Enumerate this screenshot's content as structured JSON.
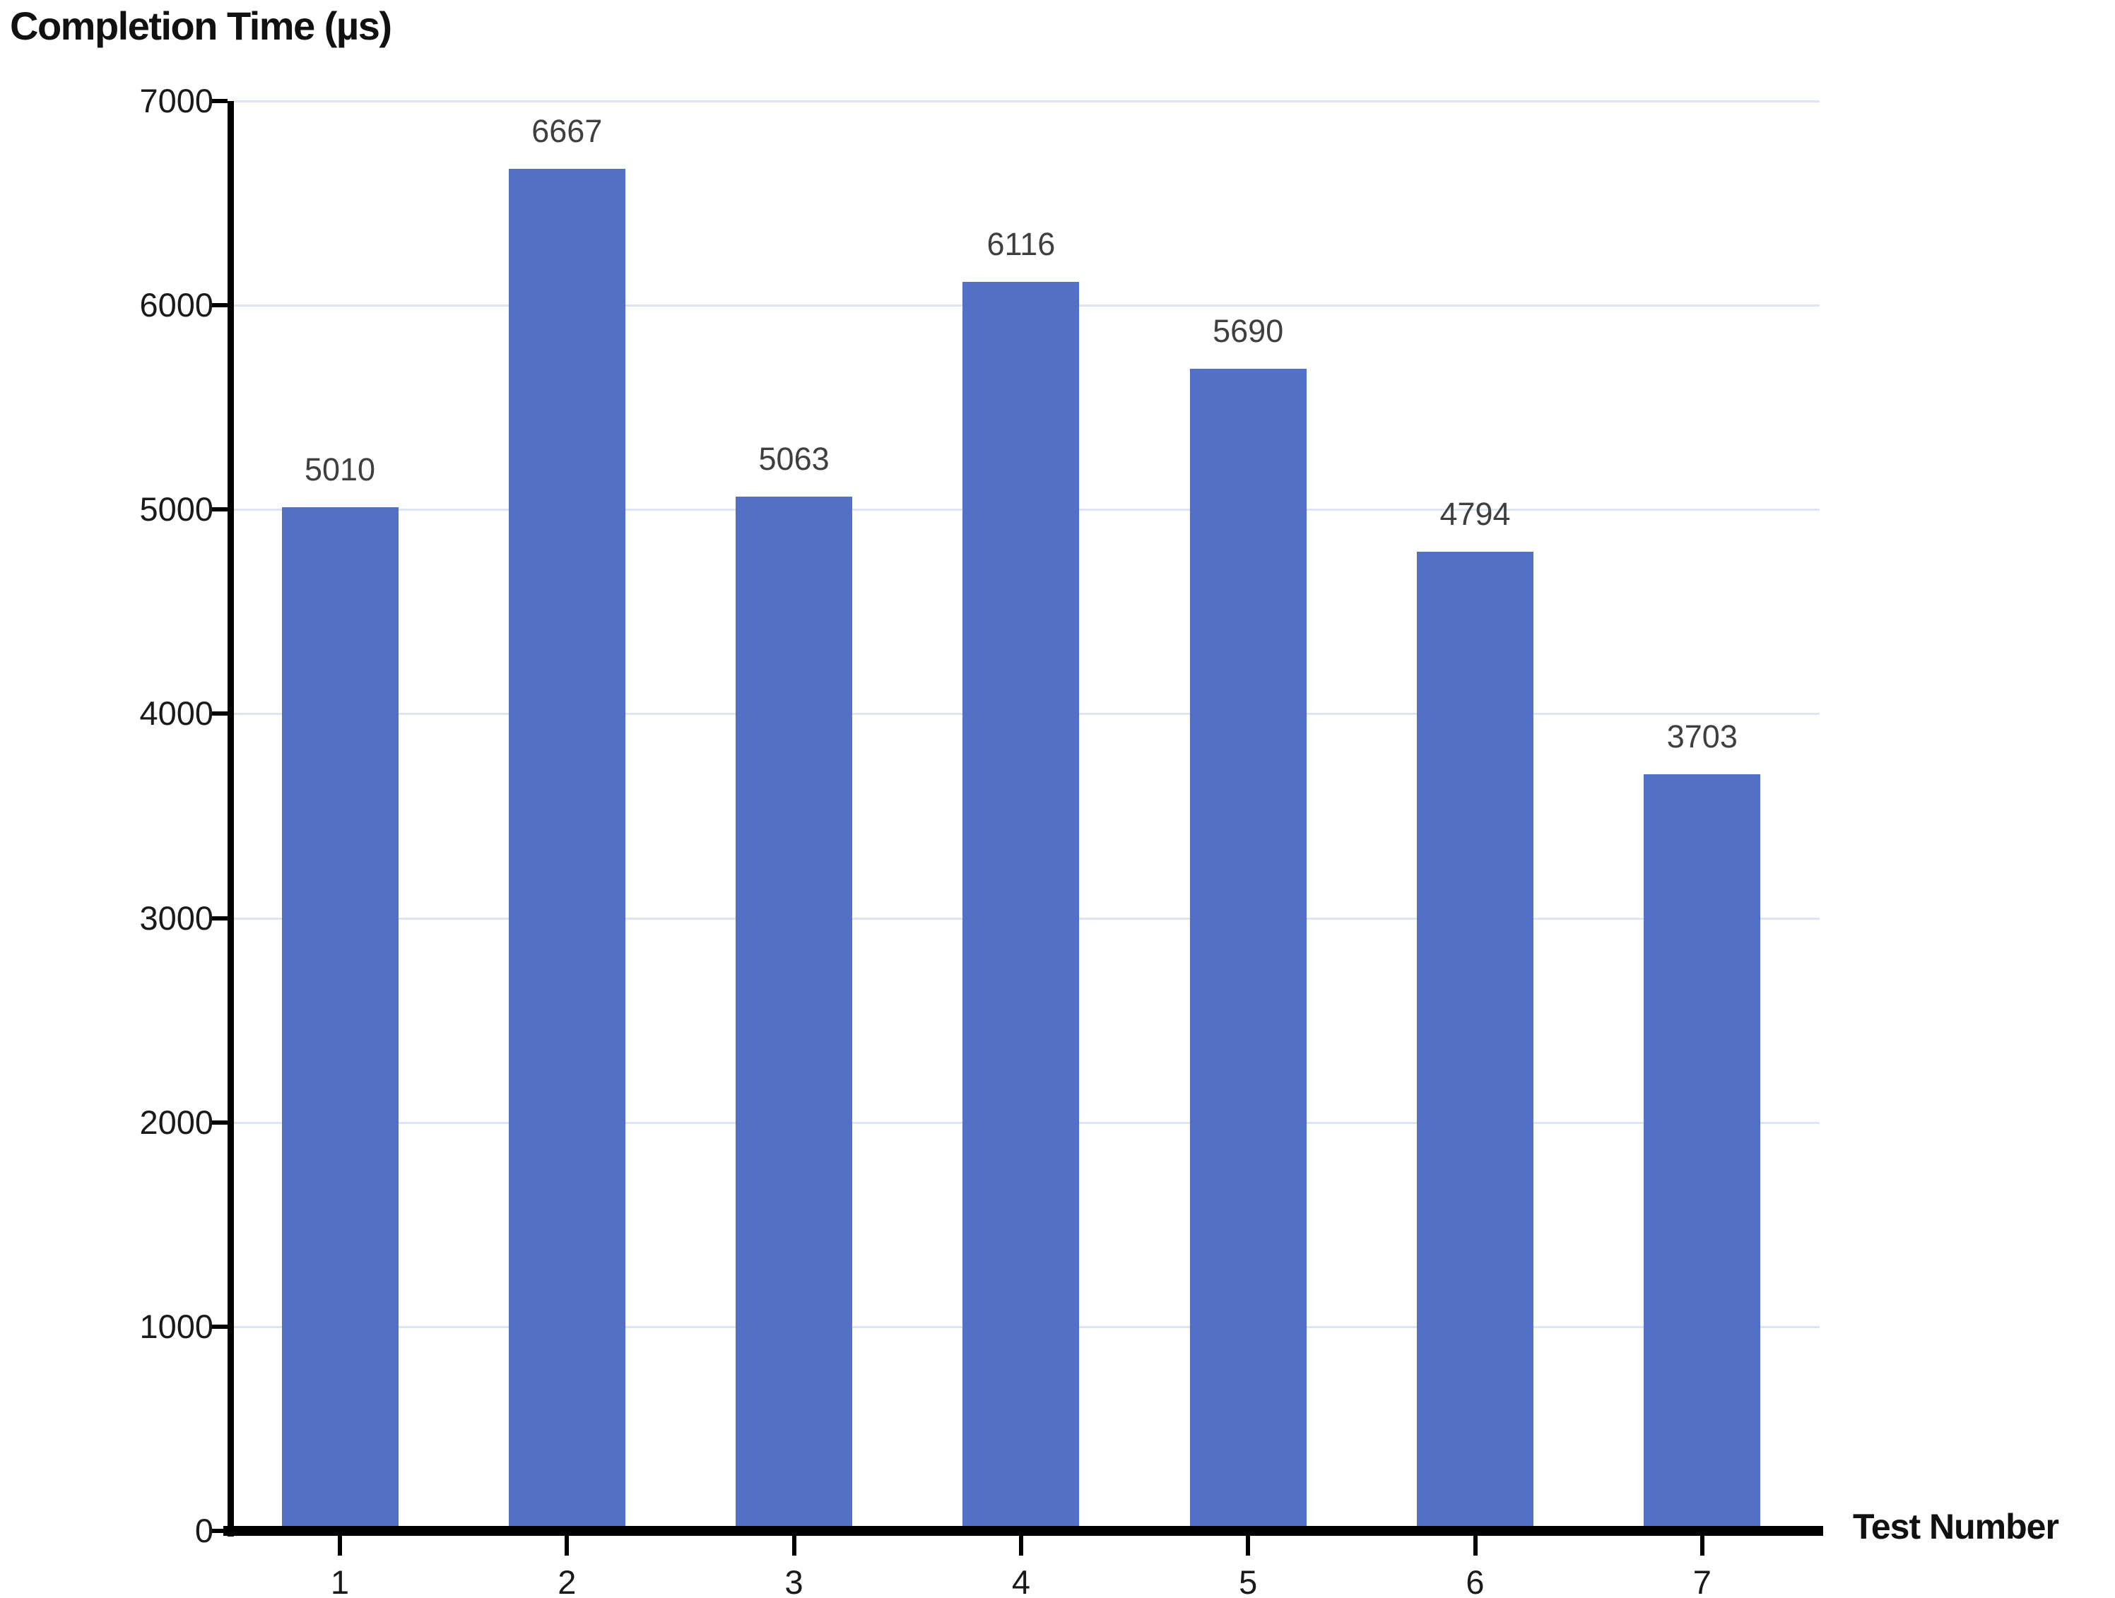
{
  "chart_data": {
    "type": "bar",
    "title": "Completion Time (µs)",
    "xlabel": "Test Number",
    "ylabel": "",
    "categories": [
      "1",
      "2",
      "3",
      "4",
      "5",
      "6",
      "7"
    ],
    "values": [
      5010,
      6667,
      5063,
      6116,
      5690,
      4794,
      3703
    ],
    "data_labels": [
      "5010",
      "6667",
      "5063",
      "6116",
      "5690",
      "4794",
      "3703"
    ],
    "ylim": [
      0,
      7000
    ],
    "ytick_interval": 1000,
    "ytick_labels": [
      "0",
      "1000",
      "2000",
      "3000",
      "4000",
      "5000",
      "6000",
      "7000"
    ],
    "grid": true,
    "legend_position": "none",
    "colors": {
      "background": "#ffffff",
      "bar": "#5470C6",
      "gridline": "#dfe4f2",
      "axis": "#000000",
      "title_text": "#111111",
      "tick_text": "#1a1a1a",
      "data_label_text": "#3f3f3f"
    }
  }
}
